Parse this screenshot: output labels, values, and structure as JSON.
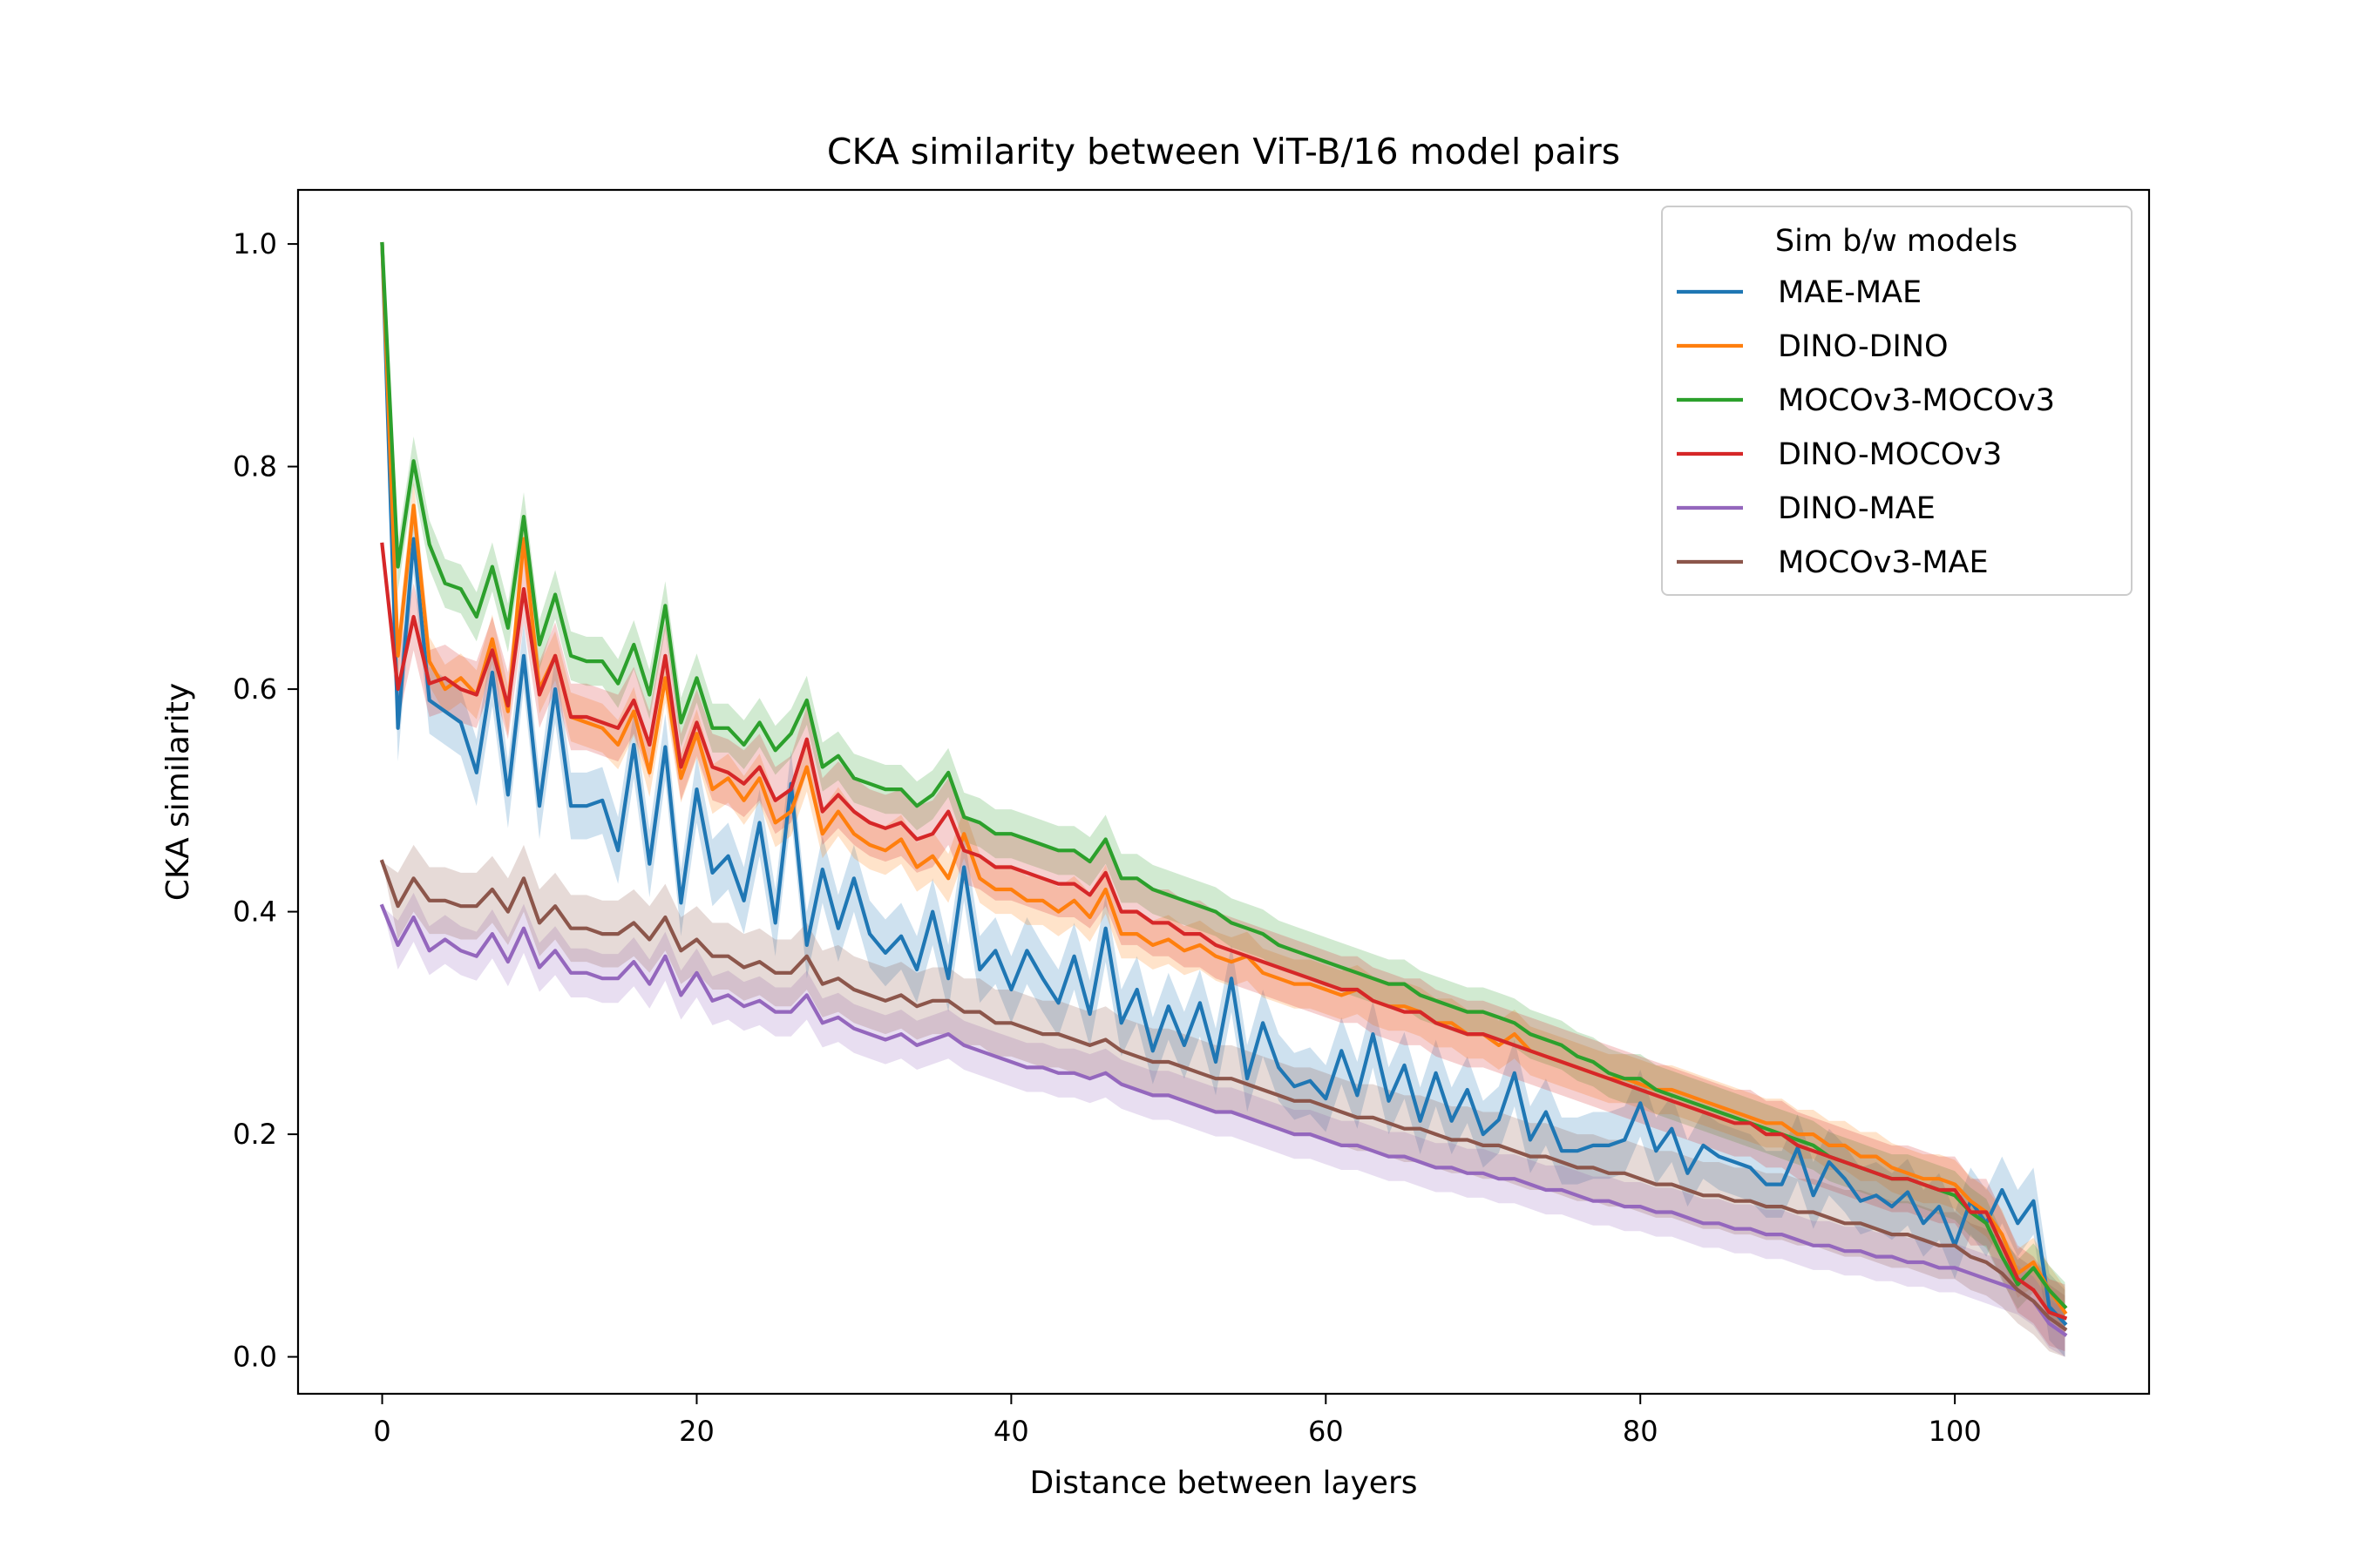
{
  "chart_data": {
    "type": "line",
    "title": "CKA similarity between ViT-B/16 model pairs",
    "xlabel": "Distance between layers",
    "ylabel": "CKA similarity",
    "xlim": [
      -5.35,
      112.35
    ],
    "ylim": [
      -0.0332,
      1.0486
    ],
    "xticks": [
      0,
      20,
      40,
      60,
      80,
      100
    ],
    "yticks": [
      0.0,
      0.2,
      0.4,
      0.6,
      0.8,
      1.0
    ],
    "xtick_labels": [
      "0",
      "20",
      "40",
      "60",
      "80",
      "100"
    ],
    "ytick_labels": [
      "0.0",
      "0.2",
      "0.4",
      "0.6",
      "0.8",
      "1.0"
    ],
    "grid": false,
    "legend": {
      "title": "Sim b/w models",
      "placement": "top-right"
    },
    "x": [
      0,
      1,
      2,
      3,
      4,
      5,
      6,
      7,
      8,
      9,
      10,
      11,
      12,
      13,
      14,
      15,
      16,
      17,
      18,
      19,
      20,
      21,
      22,
      23,
      24,
      25,
      26,
      27,
      28,
      29,
      30,
      31,
      32,
      33,
      34,
      35,
      36,
      37,
      38,
      39,
      40,
      41,
      42,
      43,
      44,
      45,
      46,
      47,
      48,
      49,
      50,
      51,
      52,
      53,
      54,
      55,
      56,
      57,
      58,
      59,
      60,
      61,
      62,
      63,
      64,
      65,
      66,
      67,
      68,
      69,
      70,
      71,
      72,
      73,
      74,
      75,
      76,
      77,
      78,
      79,
      80,
      81,
      82,
      83,
      84,
      85,
      86,
      87,
      88,
      89,
      90,
      91,
      92,
      93,
      94,
      95,
      96,
      97,
      98,
      99,
      100,
      101,
      102,
      103,
      104,
      105,
      106,
      107
    ],
    "series": [
      {
        "name": "MAE-MAE",
        "color": "#1f77b4",
        "band": 0.03,
        "values": [
          1.0,
          0.565,
          0.735,
          0.59,
          0.58,
          0.57,
          0.525,
          0.615,
          0.505,
          0.63,
          0.495,
          0.6,
          0.495,
          0.495,
          0.5,
          0.455,
          0.55,
          0.443,
          0.548,
          0.408,
          0.51,
          0.435,
          0.45,
          0.41,
          0.48,
          0.39,
          0.515,
          0.37,
          0.438,
          0.385,
          0.43,
          0.38,
          0.363,
          0.378,
          0.348,
          0.4,
          0.34,
          0.44,
          0.348,
          0.365,
          0.33,
          0.365,
          0.34,
          0.318,
          0.36,
          0.308,
          0.385,
          0.3,
          0.33,
          0.275,
          0.315,
          0.28,
          0.318,
          0.265,
          0.34,
          0.25,
          0.3,
          0.26,
          0.243,
          0.248,
          0.232,
          0.275,
          0.235,
          0.29,
          0.23,
          0.262,
          0.212,
          0.255,
          0.212,
          0.24,
          0.2,
          0.213,
          0.255,
          0.195,
          0.22,
          0.185,
          0.185,
          0.19,
          0.19,
          0.195,
          0.228,
          0.185,
          0.205,
          0.165,
          0.19,
          0.18,
          0.175,
          0.17,
          0.155,
          0.155,
          0.188,
          0.145,
          0.175,
          0.16,
          0.14,
          0.145,
          0.135,
          0.148,
          0.12,
          0.135,
          0.1,
          0.14,
          0.12,
          0.15,
          0.12,
          0.14,
          0.045,
          0.03
        ]
      },
      {
        "name": "DINO-DINO",
        "color": "#ff7f0e",
        "band": 0.022,
        "values": [
          1.0,
          0.63,
          0.765,
          0.625,
          0.6,
          0.61,
          0.595,
          0.645,
          0.58,
          0.735,
          0.6,
          0.63,
          0.575,
          0.57,
          0.565,
          0.55,
          0.58,
          0.525,
          0.61,
          0.52,
          0.56,
          0.51,
          0.52,
          0.5,
          0.52,
          0.48,
          0.49,
          0.53,
          0.47,
          0.49,
          0.47,
          0.46,
          0.455,
          0.465,
          0.44,
          0.45,
          0.43,
          0.47,
          0.43,
          0.42,
          0.42,
          0.41,
          0.41,
          0.4,
          0.41,
          0.395,
          0.42,
          0.38,
          0.38,
          0.37,
          0.375,
          0.365,
          0.37,
          0.36,
          0.355,
          0.36,
          0.345,
          0.34,
          0.335,
          0.335,
          0.33,
          0.325,
          0.33,
          0.32,
          0.315,
          0.315,
          0.31,
          0.3,
          0.3,
          0.29,
          0.29,
          0.28,
          0.29,
          0.275,
          0.27,
          0.265,
          0.26,
          0.255,
          0.25,
          0.25,
          0.245,
          0.24,
          0.24,
          0.235,
          0.23,
          0.225,
          0.22,
          0.215,
          0.21,
          0.21,
          0.2,
          0.2,
          0.19,
          0.19,
          0.18,
          0.18,
          0.17,
          0.165,
          0.16,
          0.16,
          0.155,
          0.14,
          0.13,
          0.11,
          0.075,
          0.085,
          0.06,
          0.04
        ]
      },
      {
        "name": "MOCOv3-MOCOv3",
        "color": "#2ca02c",
        "band": 0.022,
        "values": [
          1.0,
          0.71,
          0.805,
          0.73,
          0.695,
          0.69,
          0.665,
          0.71,
          0.655,
          0.755,
          0.64,
          0.685,
          0.63,
          0.625,
          0.625,
          0.605,
          0.64,
          0.595,
          0.675,
          0.57,
          0.61,
          0.565,
          0.565,
          0.55,
          0.57,
          0.545,
          0.56,
          0.59,
          0.53,
          0.54,
          0.52,
          0.515,
          0.51,
          0.51,
          0.495,
          0.505,
          0.525,
          0.485,
          0.48,
          0.47,
          0.47,
          0.465,
          0.46,
          0.455,
          0.455,
          0.445,
          0.465,
          0.43,
          0.43,
          0.42,
          0.415,
          0.41,
          0.405,
          0.4,
          0.39,
          0.385,
          0.38,
          0.37,
          0.365,
          0.36,
          0.355,
          0.35,
          0.345,
          0.34,
          0.335,
          0.335,
          0.325,
          0.32,
          0.315,
          0.31,
          0.31,
          0.305,
          0.3,
          0.29,
          0.285,
          0.28,
          0.27,
          0.265,
          0.255,
          0.25,
          0.25,
          0.24,
          0.235,
          0.23,
          0.225,
          0.22,
          0.215,
          0.21,
          0.205,
          0.2,
          0.195,
          0.19,
          0.18,
          0.175,
          0.17,
          0.165,
          0.16,
          0.16,
          0.155,
          0.15,
          0.145,
          0.13,
          0.12,
          0.09,
          0.065,
          0.08,
          0.06,
          0.045
        ]
      },
      {
        "name": "DINO-MOCOv3",
        "color": "#d62728",
        "band": 0.03,
        "values": [
          0.73,
          0.6,
          0.665,
          0.605,
          0.61,
          0.6,
          0.595,
          0.635,
          0.585,
          0.69,
          0.595,
          0.63,
          0.575,
          0.575,
          0.57,
          0.565,
          0.59,
          0.55,
          0.63,
          0.53,
          0.57,
          0.53,
          0.525,
          0.515,
          0.53,
          0.5,
          0.51,
          0.555,
          0.49,
          0.505,
          0.49,
          0.48,
          0.475,
          0.48,
          0.465,
          0.47,
          0.49,
          0.455,
          0.45,
          0.44,
          0.44,
          0.435,
          0.43,
          0.425,
          0.425,
          0.415,
          0.435,
          0.4,
          0.4,
          0.39,
          0.39,
          0.38,
          0.38,
          0.37,
          0.365,
          0.36,
          0.355,
          0.35,
          0.345,
          0.34,
          0.335,
          0.33,
          0.33,
          0.32,
          0.315,
          0.31,
          0.31,
          0.3,
          0.295,
          0.29,
          0.29,
          0.285,
          0.28,
          0.275,
          0.27,
          0.265,
          0.26,
          0.255,
          0.25,
          0.245,
          0.24,
          0.235,
          0.23,
          0.225,
          0.22,
          0.215,
          0.21,
          0.21,
          0.2,
          0.2,
          0.19,
          0.185,
          0.18,
          0.175,
          0.17,
          0.165,
          0.16,
          0.16,
          0.155,
          0.15,
          0.15,
          0.13,
          0.13,
          0.1,
          0.07,
          0.06,
          0.04,
          0.035
        ]
      },
      {
        "name": "DINO-MAE",
        "color": "#9467bd",
        "band": 0.022,
        "values": [
          0.405,
          0.37,
          0.395,
          0.365,
          0.375,
          0.365,
          0.36,
          0.38,
          0.355,
          0.385,
          0.35,
          0.365,
          0.345,
          0.345,
          0.34,
          0.34,
          0.355,
          0.335,
          0.36,
          0.325,
          0.345,
          0.32,
          0.325,
          0.315,
          0.32,
          0.31,
          0.31,
          0.325,
          0.3,
          0.305,
          0.295,
          0.29,
          0.285,
          0.29,
          0.28,
          0.285,
          0.29,
          0.28,
          0.275,
          0.27,
          0.265,
          0.26,
          0.26,
          0.255,
          0.255,
          0.25,
          0.255,
          0.245,
          0.24,
          0.235,
          0.235,
          0.23,
          0.225,
          0.22,
          0.22,
          0.215,
          0.21,
          0.205,
          0.2,
          0.2,
          0.195,
          0.19,
          0.19,
          0.185,
          0.18,
          0.18,
          0.175,
          0.17,
          0.17,
          0.165,
          0.165,
          0.16,
          0.16,
          0.155,
          0.15,
          0.15,
          0.145,
          0.14,
          0.14,
          0.135,
          0.135,
          0.13,
          0.13,
          0.125,
          0.12,
          0.12,
          0.115,
          0.115,
          0.11,
          0.11,
          0.105,
          0.1,
          0.1,
          0.095,
          0.095,
          0.09,
          0.09,
          0.085,
          0.085,
          0.08,
          0.08,
          0.075,
          0.07,
          0.065,
          0.06,
          0.05,
          0.03,
          0.02
        ]
      },
      {
        "name": "MOCOv3-MAE",
        "color": "#8c564b",
        "band": 0.03,
        "values": [
          0.445,
          0.405,
          0.43,
          0.41,
          0.41,
          0.405,
          0.405,
          0.42,
          0.4,
          0.43,
          0.39,
          0.405,
          0.385,
          0.385,
          0.38,
          0.38,
          0.39,
          0.375,
          0.395,
          0.365,
          0.375,
          0.36,
          0.36,
          0.35,
          0.355,
          0.345,
          0.345,
          0.36,
          0.335,
          0.34,
          0.33,
          0.325,
          0.32,
          0.325,
          0.315,
          0.32,
          0.32,
          0.31,
          0.31,
          0.3,
          0.3,
          0.295,
          0.29,
          0.29,
          0.285,
          0.28,
          0.285,
          0.275,
          0.27,
          0.265,
          0.265,
          0.26,
          0.255,
          0.25,
          0.25,
          0.245,
          0.24,
          0.235,
          0.23,
          0.23,
          0.225,
          0.22,
          0.215,
          0.215,
          0.21,
          0.205,
          0.205,
          0.2,
          0.195,
          0.195,
          0.19,
          0.19,
          0.185,
          0.18,
          0.18,
          0.175,
          0.17,
          0.17,
          0.165,
          0.165,
          0.16,
          0.155,
          0.155,
          0.15,
          0.145,
          0.145,
          0.14,
          0.14,
          0.135,
          0.135,
          0.13,
          0.13,
          0.125,
          0.12,
          0.12,
          0.115,
          0.11,
          0.11,
          0.105,
          0.1,
          0.1,
          0.09,
          0.085,
          0.075,
          0.06,
          0.05,
          0.035,
          0.025
        ]
      }
    ]
  }
}
